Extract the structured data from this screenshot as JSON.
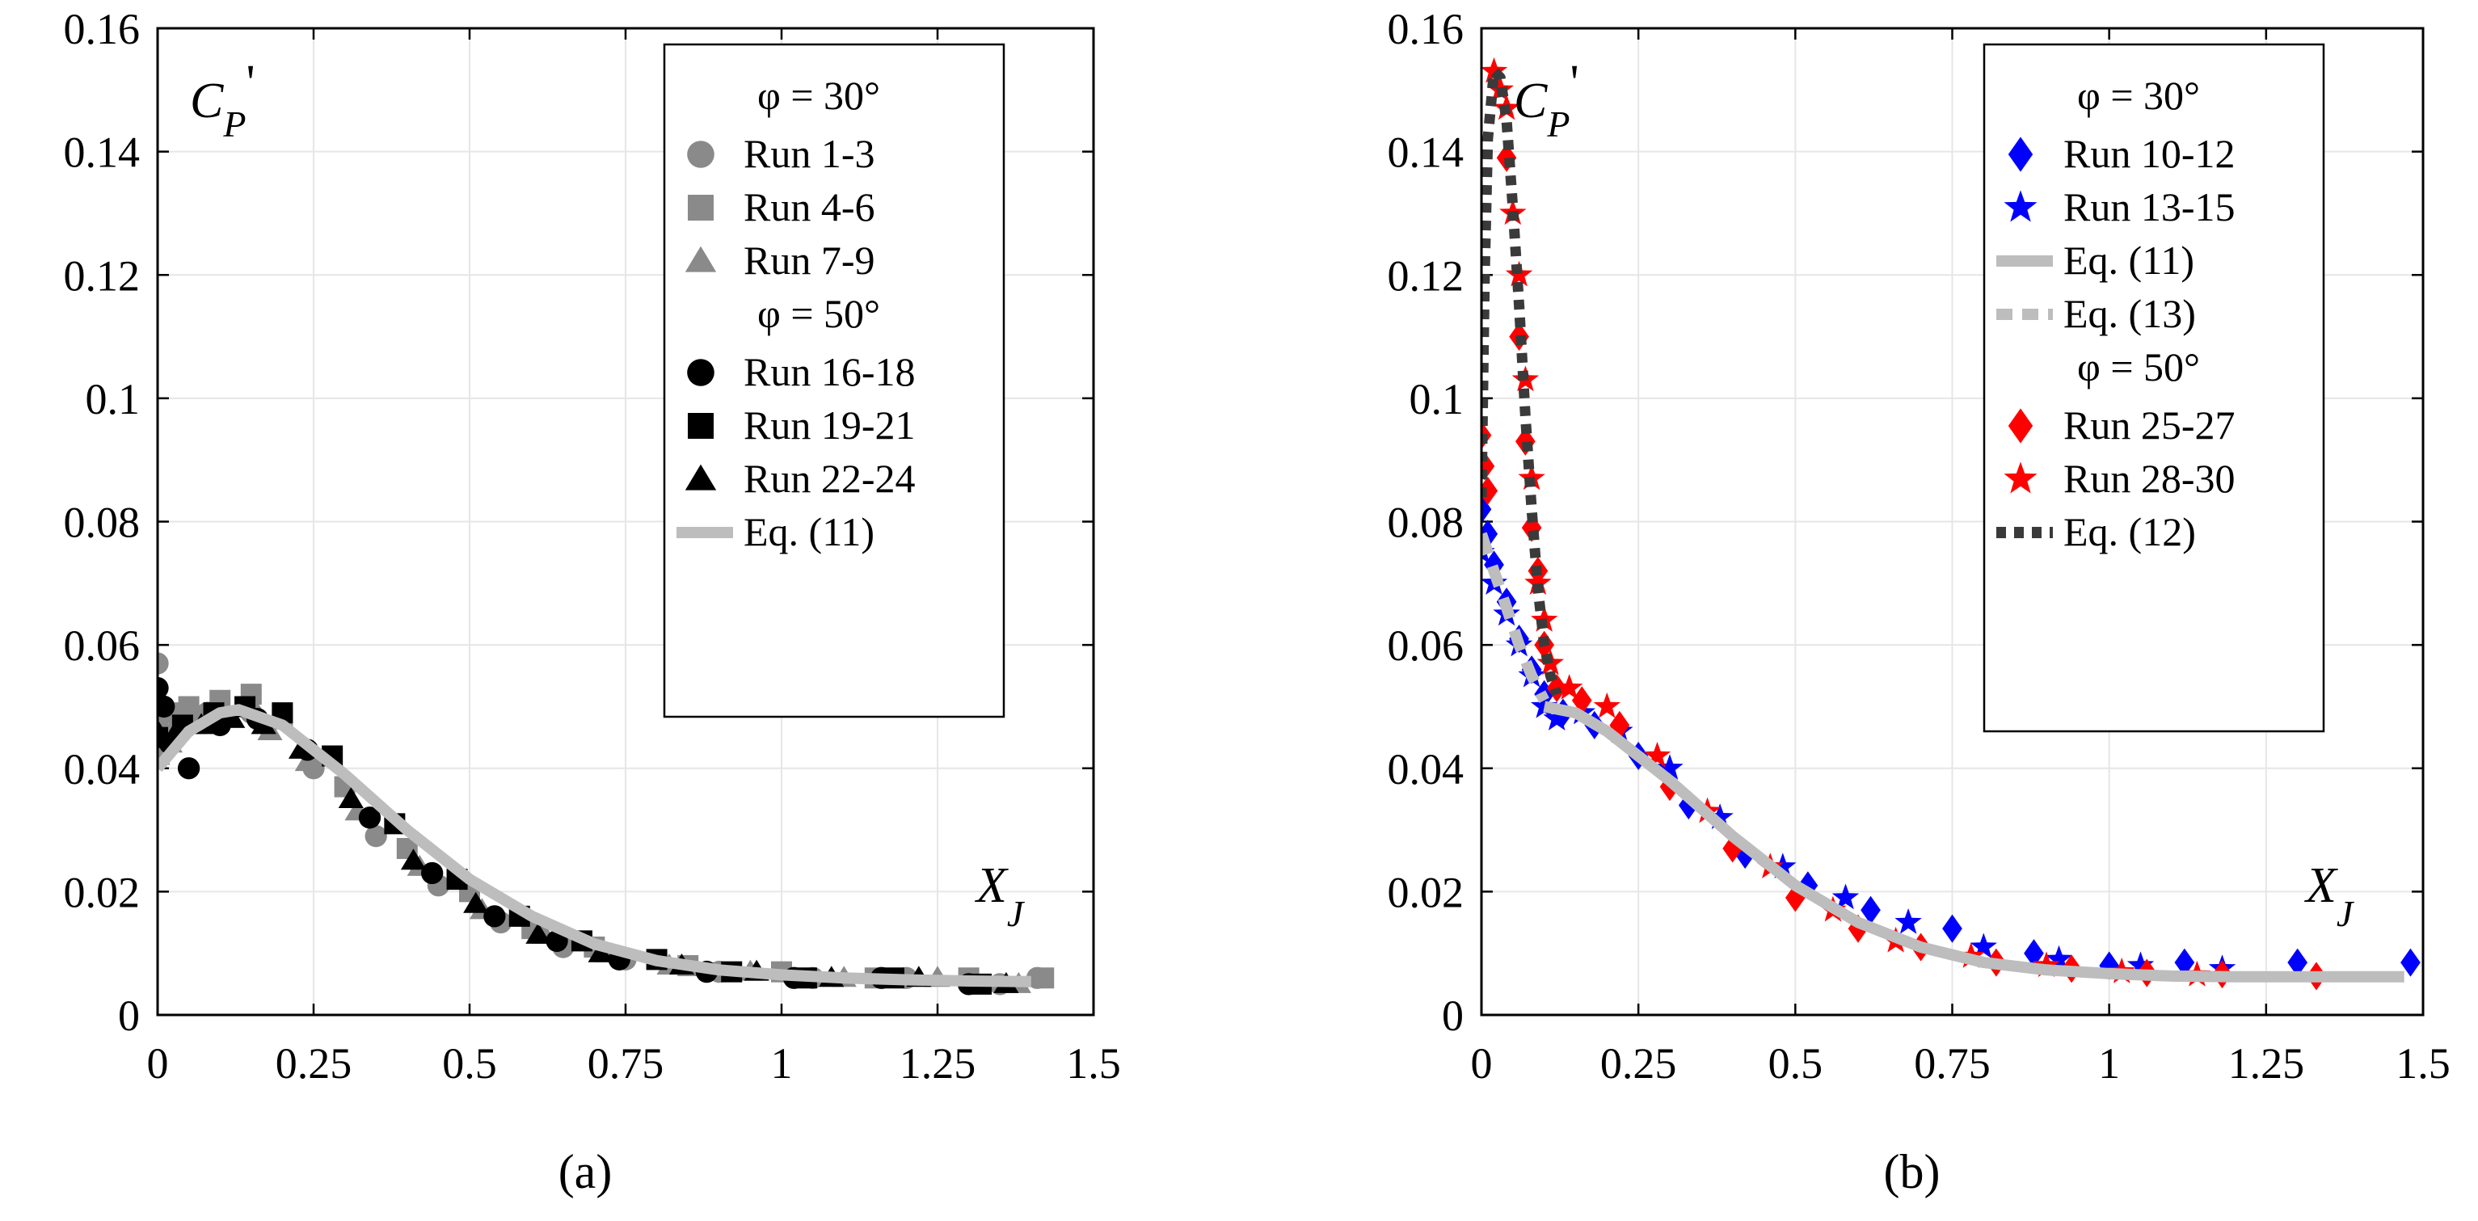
{
  "colors": {
    "gray_marker": "#8a8a8a",
    "black_marker": "#000000",
    "blue_marker": "#0000ff",
    "red_marker": "#ff0000",
    "light_line": "#bdbdbd",
    "dark_dotted": "#3a3a3a",
    "grid": "#e6e6e6"
  },
  "chart_data": [
    {
      "type": "scatter",
      "panel": "a",
      "caption": "(a)",
      "ylabel": "C_P'",
      "ylabel_main": "C",
      "ylabel_sub": "P",
      "ylabel_prime": "'",
      "xlabel": "X_J",
      "xlabel_main": "X",
      "xlabel_sub": "J",
      "xlim": [
        0,
        1.5
      ],
      "ylim": [
        0,
        0.16
      ],
      "grid": true,
      "legend_position": "top-right",
      "xticks": [
        "0",
        "0.25",
        "0.5",
        "0.75",
        "1",
        "1.25",
        "1.5"
      ],
      "yticks": [
        "0",
        "0.02",
        "0.04",
        "0.06",
        "0.08",
        "0.1",
        "0.12",
        "0.14",
        "0.16"
      ],
      "legend_headers": [
        "φ = 30°",
        "φ = 50°"
      ],
      "series": [
        {
          "name": "Run 1-3",
          "group": "φ = 30°",
          "marker": "circle",
          "color": "#8a8a8a",
          "x": [
            0.0,
            0.01,
            0.03,
            0.08,
            0.15,
            0.25,
            0.35,
            0.45,
            0.55,
            0.65,
            0.75,
            0.9,
            1.05,
            1.2,
            1.35,
            1.41
          ],
          "y": [
            0.057,
            0.05,
            0.046,
            0.049,
            0.049,
            0.04,
            0.029,
            0.021,
            0.015,
            0.011,
            0.009,
            0.007,
            0.006,
            0.006,
            0.005,
            0.006
          ]
        },
        {
          "name": "Run 4-6",
          "group": "φ = 30°",
          "marker": "square",
          "color": "#8a8a8a",
          "x": [
            0.0,
            0.02,
            0.05,
            0.1,
            0.15,
            0.2,
            0.3,
            0.4,
            0.5,
            0.6,
            0.7,
            0.85,
            1.0,
            1.15,
            1.3,
            1.42
          ],
          "y": [
            0.048,
            0.049,
            0.05,
            0.051,
            0.052,
            0.048,
            0.037,
            0.027,
            0.02,
            0.014,
            0.011,
            0.008,
            0.007,
            0.006,
            0.006,
            0.006
          ]
        },
        {
          "name": "Run 7-9",
          "group": "φ = 30°",
          "marker": "triangle",
          "color": "#8a8a8a",
          "x": [
            0.0,
            0.02,
            0.06,
            0.12,
            0.18,
            0.24,
            0.32,
            0.42,
            0.52,
            0.62,
            0.72,
            0.82,
            0.95,
            1.1,
            1.25,
            1.38
          ],
          "y": [
            0.042,
            0.044,
            0.047,
            0.048,
            0.046,
            0.041,
            0.033,
            0.024,
            0.017,
            0.013,
            0.01,
            0.008,
            0.007,
            0.006,
            0.006,
            0.005
          ]
        },
        {
          "name": "Run 16-18",
          "group": "φ = 50°",
          "marker": "circle",
          "color": "#000000",
          "x": [
            0.0,
            0.01,
            0.02,
            0.05,
            0.1,
            0.16,
            0.24,
            0.34,
            0.44,
            0.54,
            0.64,
            0.74,
            0.88,
            1.02,
            1.16,
            1.3
          ],
          "y": [
            0.053,
            0.05,
            0.044,
            0.04,
            0.047,
            0.048,
            0.043,
            0.032,
            0.023,
            0.016,
            0.012,
            0.009,
            0.007,
            0.006,
            0.006,
            0.005
          ]
        },
        {
          "name": "Run 19-21",
          "group": "φ = 50°",
          "marker": "square",
          "color": "#000000",
          "x": [
            0.0,
            0.04,
            0.09,
            0.14,
            0.2,
            0.28,
            0.38,
            0.48,
            0.58,
            0.68,
            0.8,
            0.92,
            1.04,
            1.18,
            1.32
          ],
          "y": [
            0.045,
            0.047,
            0.049,
            0.05,
            0.049,
            0.042,
            0.031,
            0.022,
            0.016,
            0.012,
            0.009,
            0.007,
            0.006,
            0.006,
            0.005
          ]
        },
        {
          "name": "Run 22-24",
          "group": "φ = 50°",
          "marker": "triangle",
          "color": "#000000",
          "x": [
            0.0,
            0.03,
            0.07,
            0.12,
            0.17,
            0.23,
            0.31,
            0.41,
            0.51,
            0.61,
            0.71,
            0.84,
            0.96,
            1.08,
            1.22,
            1.36
          ],
          "y": [
            0.046,
            0.046,
            0.047,
            0.048,
            0.047,
            0.043,
            0.035,
            0.025,
            0.018,
            0.013,
            0.01,
            0.008,
            0.007,
            0.006,
            0.006,
            0.005
          ]
        },
        {
          "name": "Eq. (11)",
          "group": "",
          "marker": "line",
          "style": "solid",
          "color": "#bdbdbd",
          "x": [
            0.0,
            0.05,
            0.1,
            0.13,
            0.2,
            0.3,
            0.4,
            0.5,
            0.6,
            0.7,
            0.8,
            0.9,
            1.0,
            1.1,
            1.2,
            1.3,
            1.4
          ],
          "y": [
            0.04,
            0.046,
            0.049,
            0.0495,
            0.047,
            0.039,
            0.03,
            0.022,
            0.016,
            0.0115,
            0.0088,
            0.0073,
            0.0065,
            0.006,
            0.0057,
            0.0055,
            0.0054
          ]
        }
      ]
    },
    {
      "type": "scatter",
      "panel": "b",
      "caption": "(b)",
      "ylabel": "C_P'",
      "ylabel_main": "C",
      "ylabel_sub": "P",
      "ylabel_prime": "'",
      "xlabel": "X_J",
      "xlabel_main": "X",
      "xlabel_sub": "J",
      "xlim": [
        0,
        1.5
      ],
      "ylim": [
        0,
        0.16
      ],
      "grid": true,
      "legend_position": "top-right",
      "xticks": [
        "0",
        "0.25",
        "0.5",
        "0.75",
        "1",
        "1.25",
        "1.5"
      ],
      "yticks": [
        "0",
        "0.02",
        "0.04",
        "0.06",
        "0.08",
        "0.1",
        "0.12",
        "0.14",
        "0.16"
      ],
      "legend_headers": [
        "φ = 30°",
        "φ = 50°"
      ],
      "series": [
        {
          "name": "Run 10-12",
          "group": "φ = 30°",
          "marker": "diamond",
          "color": "#0000ff",
          "x": [
            0.0,
            0.01,
            0.02,
            0.04,
            0.06,
            0.08,
            0.1,
            0.13,
            0.18,
            0.25,
            0.33,
            0.42,
            0.52,
            0.62,
            0.75,
            0.88,
            1.0,
            1.12,
            1.3,
            1.48
          ],
          "y": [
            0.082,
            0.078,
            0.073,
            0.067,
            0.061,
            0.056,
            0.052,
            0.049,
            0.047,
            0.042,
            0.034,
            0.026,
            0.021,
            0.017,
            0.014,
            0.01,
            0.008,
            0.0085,
            0.0085,
            0.0085
          ]
        },
        {
          "name": "Run 13-15",
          "group": "φ = 30°",
          "marker": "star",
          "color": "#0000ff",
          "x": [
            0.0,
            0.02,
            0.04,
            0.06,
            0.08,
            0.1,
            0.12,
            0.16,
            0.22,
            0.3,
            0.38,
            0.48,
            0.58,
            0.68,
            0.8,
            0.92,
            1.05,
            1.18
          ],
          "y": [
            0.075,
            0.07,
            0.065,
            0.06,
            0.055,
            0.05,
            0.048,
            0.049,
            0.046,
            0.04,
            0.032,
            0.024,
            0.019,
            0.015,
            0.011,
            0.009,
            0.008,
            0.0075
          ]
        },
        {
          "name": "Eq. (11)",
          "group": "φ = 30°",
          "marker": "line",
          "style": "solid",
          "color": "#bdbdbd",
          "x": [
            0.1,
            0.15,
            0.2,
            0.3,
            0.4,
            0.5,
            0.6,
            0.7,
            0.8,
            0.9,
            1.0,
            1.1,
            1.2,
            1.3,
            1.4,
            1.47
          ],
          "y": [
            0.05,
            0.049,
            0.046,
            0.038,
            0.029,
            0.021,
            0.015,
            0.011,
            0.0085,
            0.0073,
            0.0067,
            0.0063,
            0.0062,
            0.0062,
            0.0062,
            0.0062
          ]
        },
        {
          "name": "Eq. (13)",
          "group": "φ = 30°",
          "marker": "line",
          "style": "dashed",
          "color": "#bdbdbd",
          "x": [
            0.0,
            0.02,
            0.04,
            0.06,
            0.08,
            0.1
          ],
          "y": [
            0.078,
            0.072,
            0.066,
            0.06,
            0.055,
            0.051
          ]
        },
        {
          "name": "Run 25-27",
          "group": "φ = 50°",
          "marker": "diamond",
          "color": "#ff0000",
          "x": [
            0.0,
            0.005,
            0.01,
            0.04,
            0.06,
            0.07,
            0.08,
            0.09,
            0.1,
            0.12,
            0.16,
            0.22,
            0.3,
            0.4,
            0.5,
            0.6,
            0.7,
            0.82,
            0.94,
            1.06,
            1.18,
            1.33
          ],
          "y": [
            0.094,
            0.089,
            0.085,
            0.139,
            0.11,
            0.093,
            0.079,
            0.072,
            0.06,
            0.053,
            0.051,
            0.047,
            0.037,
            0.027,
            0.019,
            0.014,
            0.011,
            0.0085,
            0.0075,
            0.0068,
            0.0066,
            0.0063
          ]
        },
        {
          "name": "Run 28-30",
          "group": "φ = 50°",
          "marker": "star",
          "color": "#ff0000",
          "x": [
            0.02,
            0.03,
            0.04,
            0.05,
            0.06,
            0.07,
            0.08,
            0.09,
            0.1,
            0.11,
            0.14,
            0.2,
            0.28,
            0.36,
            0.46,
            0.56,
            0.66,
            0.78,
            0.9,
            1.02,
            1.14
          ],
          "y": [
            0.153,
            0.15,
            0.147,
            0.13,
            0.12,
            0.103,
            0.087,
            0.07,
            0.064,
            0.057,
            0.053,
            0.05,
            0.042,
            0.033,
            0.024,
            0.017,
            0.012,
            0.0095,
            0.008,
            0.007,
            0.0065
          ]
        },
        {
          "name": "Eq. (12)",
          "group": "φ = 50°",
          "marker": "line",
          "style": "dotted",
          "color": "#3a3a3a",
          "x": [
            0.0,
            0.005,
            0.01,
            0.02,
            0.03,
            0.04,
            0.05,
            0.06,
            0.07,
            0.08,
            0.09,
            0.1,
            0.11,
            0.12
          ],
          "y": [
            0.084,
            0.12,
            0.142,
            0.153,
            0.152,
            0.145,
            0.131,
            0.115,
            0.097,
            0.082,
            0.069,
            0.06,
            0.055,
            0.052
          ]
        }
      ]
    }
  ]
}
